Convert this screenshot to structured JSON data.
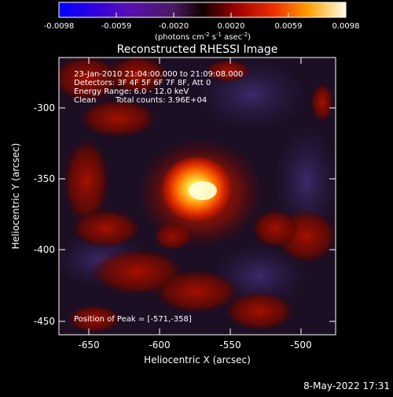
{
  "colorbar": {
    "ticks": [
      "-0.0098",
      "-0.0059",
      "-0.0020",
      "0.0020",
      "0.0059",
      "0.0098"
    ],
    "units": "(photons cm",
    "units_exp1": "-2",
    "units_mid": " s",
    "units_exp2": "-1",
    "units_end": " asec",
    "units_exp3": "-2",
    "units_close": ")"
  },
  "plot": {
    "title": "Reconstructed RHESSI Image",
    "xlabel": "Heliocentric X (arcsec)",
    "ylabel": "Heliocentric Y (arcsec)",
    "x_ticks": [
      "-650",
      "-600",
      "-550",
      "-500"
    ],
    "y_ticks": [
      "-300",
      "-350",
      "-400",
      "-450"
    ]
  },
  "info": {
    "line1": "23-Jan-2010 21:04:00.000 to 21:09:08.000",
    "line2": "Detectors: 3F 4F 5F 6F 7F 8F, Att 0",
    "line3": "Energy Range: 6.0 - 12.0 keV",
    "line4_a": "Clean",
    "line4_b": "Total counts: 3.96E+04",
    "peak": "Position of Peak = [-571,-358]"
  },
  "timestamp": "8-May-2022 17:31"
}
